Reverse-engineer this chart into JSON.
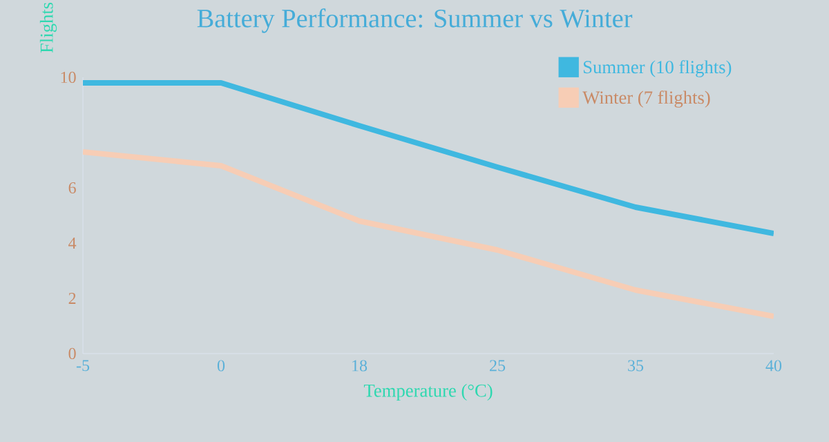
{
  "chart_data": {
    "type": "line",
    "title": "Battery Performance: Summer vs Winter",
    "xlabel": "Temperature (°C)",
    "ylabel": "Flights",
    "categories": [
      "-5",
      "0",
      "18",
      "25",
      "35",
      "40"
    ],
    "series": [
      {
        "name": "Summer (10 flights)",
        "color": "#3fb8e0",
        "values": [
          9.8,
          9.8,
          8.25,
          6.75,
          5.3,
          4.35
        ]
      },
      {
        "name": "Winter (7 flights)",
        "color": "#f7cdb5",
        "values": [
          7.3,
          6.8,
          4.8,
          3.75,
          2.3,
          1.35
        ]
      }
    ],
    "ylim": [
      0,
      10
    ],
    "yticks": [
      0,
      2,
      4,
      6,
      10
    ],
    "legend": "top right",
    "marker": "none",
    "line_style": "solid",
    "grid": false
  }
}
